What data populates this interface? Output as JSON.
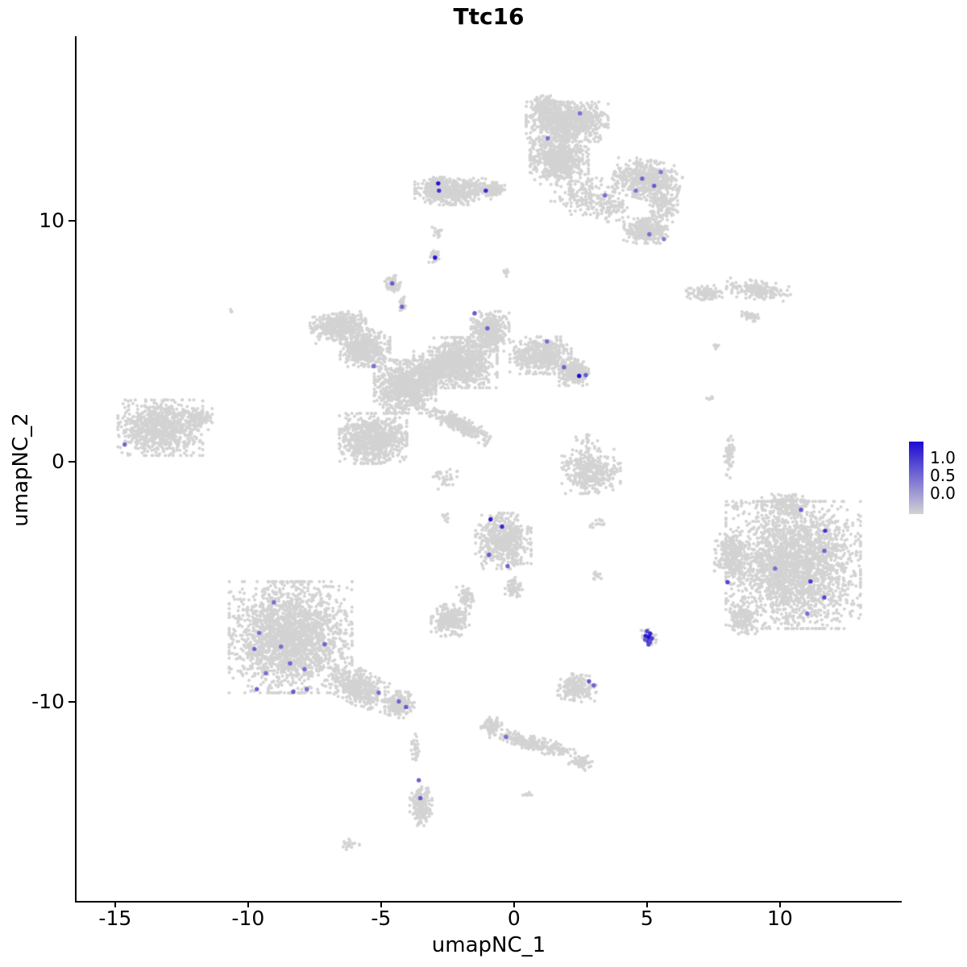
{
  "title": "Ttc16",
  "axes": {
    "xlabel": "umapNC_1",
    "ylabel": "umapNC_2"
  },
  "legend": {
    "ticks": [
      "1.0",
      "0.5",
      "0.0"
    ]
  },
  "chart_data": {
    "type": "scatter",
    "title": "Ttc16",
    "xlabel": "umapNC_1",
    "ylabel": "umapNC_2",
    "xlim": [
      -16.45,
      14.55
    ],
    "ylim": [
      -18.25,
      17.65
    ],
    "xticks": [
      -15,
      -10,
      -5,
      0,
      5,
      10
    ],
    "xtick_labels": [
      "-15",
      "-10",
      "-5",
      "0",
      "5",
      "10"
    ],
    "yticks": [
      -10,
      0,
      10
    ],
    "ytick_labels": [
      "-10",
      "0",
      "10"
    ],
    "grid": false,
    "legend_position": "right",
    "legend_ticks": [
      "1.0",
      "0.5",
      "0.0"
    ],
    "legend_values": [
      1.0,
      0.5,
      0.0
    ],
    "point_color_low": "#d3d3d3",
    "point_color_high": "#1c0ad2",
    "background_clusters": [
      [
        2.0,
        14.1,
        1.4,
        0.75,
        850,
        0
      ],
      [
        1.2,
        14.8,
        0.5,
        0.35,
        150,
        0
      ],
      [
        1.7,
        12.5,
        1.0,
        0.9,
        650,
        0
      ],
      [
        2.6,
        11.0,
        1.1,
        0.7,
        160,
        0
      ],
      [
        3.6,
        10.5,
        0.8,
        0.5,
        90,
        0
      ],
      [
        5.0,
        11.7,
        1.15,
        0.75,
        600,
        -15
      ],
      [
        4.95,
        9.6,
        0.75,
        0.5,
        320,
        0
      ],
      [
        5.6,
        10.6,
        0.5,
        0.6,
        120,
        0
      ],
      [
        -2.3,
        11.2,
        1.3,
        0.5,
        450,
        0
      ],
      [
        -2.9,
        11.3,
        0.35,
        0.45,
        150,
        0
      ],
      [
        -0.9,
        11.3,
        0.5,
        0.25,
        100,
        0
      ],
      [
        -2.8,
        9.5,
        0.25,
        0.3,
        16,
        0
      ],
      [
        -3.0,
        8.5,
        0.18,
        0.22,
        30,
        0
      ],
      [
        -4.55,
        7.35,
        0.28,
        0.33,
        70,
        0
      ],
      [
        -4.2,
        6.6,
        0.15,
        0.3,
        25,
        0
      ],
      [
        -6.6,
        5.6,
        0.95,
        0.5,
        380,
        10
      ],
      [
        -5.6,
        4.7,
        0.85,
        0.7,
        450,
        0
      ],
      [
        -4.1,
        3.1,
        1.05,
        1.0,
        850,
        0
      ],
      [
        -5.3,
        0.95,
        1.15,
        0.95,
        800,
        0
      ],
      [
        -3.0,
        3.8,
        0.7,
        0.7,
        300,
        0
      ],
      [
        -1.9,
        4.1,
        1.15,
        0.95,
        800,
        0
      ],
      [
        -0.9,
        5.4,
        0.65,
        0.75,
        380,
        0
      ],
      [
        1.0,
        4.4,
        1.05,
        0.7,
        500,
        0
      ],
      [
        2.25,
        3.7,
        0.5,
        0.5,
        250,
        0
      ],
      [
        -2.0,
        1.5,
        1.1,
        0.3,
        280,
        -28
      ],
      [
        -2.6,
        -0.6,
        0.5,
        0.5,
        40,
        0
      ],
      [
        -13.3,
        1.4,
        1.45,
        1.05,
        850,
        0
      ],
      [
        -11.9,
        1.75,
        0.5,
        0.4,
        130,
        0
      ],
      [
        7.2,
        7.0,
        0.65,
        0.25,
        110,
        5
      ],
      [
        9.2,
        7.1,
        1.1,
        0.35,
        170,
        -8
      ],
      [
        8.9,
        6.0,
        0.3,
        0.2,
        35,
        0
      ],
      [
        7.6,
        4.8,
        0.12,
        0.12,
        10,
        0
      ],
      [
        -0.4,
        -3.3,
        0.95,
        1.05,
        550,
        0
      ],
      [
        0.0,
        -5.2,
        0.3,
        0.4,
        60,
        0
      ],
      [
        2.9,
        -0.4,
        1.0,
        0.85,
        380,
        0
      ],
      [
        10.5,
        -4.3,
        2.3,
        2.4,
        2400,
        0
      ],
      [
        8.2,
        -3.9,
        0.6,
        0.8,
        250,
        0
      ],
      [
        8.6,
        -6.5,
        0.5,
        0.6,
        150,
        0
      ],
      [
        10.2,
        -1.8,
        0.8,
        0.4,
        150,
        0
      ],
      [
        -8.4,
        -7.3,
        2.1,
        2.1,
        2100,
        0
      ],
      [
        -5.8,
        -9.4,
        1.1,
        0.65,
        380,
        -30
      ],
      [
        -4.3,
        -10.1,
        0.5,
        0.5,
        220,
        0
      ],
      [
        -2.4,
        -6.6,
        0.65,
        0.6,
        240,
        0
      ],
      [
        -1.8,
        -5.6,
        0.3,
        0.45,
        60,
        20
      ],
      [
        2.4,
        -9.4,
        0.65,
        0.5,
        200,
        -10
      ],
      [
        5.05,
        -7.3,
        0.28,
        0.3,
        50,
        0
      ],
      [
        0.7,
        -11.7,
        1.5,
        0.28,
        260,
        -17
      ],
      [
        -0.85,
        -10.95,
        0.35,
        0.3,
        70,
        0
      ],
      [
        2.5,
        -12.5,
        0.4,
        0.3,
        60,
        0
      ],
      [
        -3.5,
        -14.3,
        0.38,
        0.75,
        170,
        0
      ],
      [
        -3.7,
        -11.9,
        0.15,
        0.65,
        30,
        0
      ],
      [
        -6.2,
        -15.9,
        0.35,
        0.2,
        22,
        0
      ],
      [
        0.5,
        -13.8,
        0.15,
        0.12,
        10,
        0
      ],
      [
        8.1,
        0.2,
        0.18,
        0.85,
        55,
        0
      ],
      [
        8.4,
        -1.8,
        0.2,
        0.2,
        12,
        0
      ],
      [
        -10.6,
        6.2,
        0.1,
        0.1,
        4,
        0
      ],
      [
        3.2,
        -2.6,
        0.3,
        0.3,
        14,
        0
      ],
      [
        3.1,
        -4.7,
        0.25,
        0.2,
        12,
        0
      ],
      [
        -2.6,
        -2.3,
        0.2,
        0.2,
        10,
        0
      ],
      [
        7.4,
        2.6,
        0.15,
        0.15,
        6,
        0
      ],
      [
        2.7,
        0.9,
        0.4,
        0.3,
        20,
        0
      ],
      [
        -0.3,
        7.9,
        0.15,
        0.2,
        8,
        0
      ]
    ],
    "expression_points": [
      [
        2.48,
        14.45,
        0.5
      ],
      [
        1.27,
        13.41,
        0.5
      ],
      [
        4.82,
        11.74,
        0.55
      ],
      [
        5.27,
        11.44,
        0.6
      ],
      [
        4.58,
        11.24,
        0.5
      ],
      [
        5.52,
        12.01,
        0.45
      ],
      [
        3.42,
        11.04,
        0.5
      ],
      [
        5.09,
        9.43,
        0.5
      ],
      [
        5.64,
        9.23,
        0.45
      ],
      [
        -2.85,
        11.54,
        0.95
      ],
      [
        -2.82,
        11.24,
        0.8
      ],
      [
        -1.06,
        11.24,
        0.85
      ],
      [
        -2.97,
        8.46,
        0.95
      ],
      [
        -4.58,
        7.39,
        0.6
      ],
      [
        -4.21,
        6.42,
        0.55
      ],
      [
        -1.48,
        6.15,
        0.6
      ],
      [
        -1.0,
        5.52,
        0.55
      ],
      [
        1.24,
        4.98,
        0.5
      ],
      [
        1.88,
        3.91,
        0.55
      ],
      [
        2.45,
        3.55,
        1.0
      ],
      [
        2.7,
        3.58,
        0.6
      ],
      [
        -5.27,
        3.95,
        0.5
      ],
      [
        -14.64,
        0.7,
        0.55
      ],
      [
        -0.88,
        -2.41,
        0.9
      ],
      [
        -0.45,
        -2.71,
        0.85
      ],
      [
        -0.94,
        -3.88,
        0.6
      ],
      [
        -0.24,
        -4.35,
        0.55
      ],
      [
        10.79,
        -2.01,
        0.6
      ],
      [
        11.7,
        -2.88,
        0.8
      ],
      [
        11.67,
        -3.71,
        0.55
      ],
      [
        9.82,
        -4.45,
        0.5
      ],
      [
        8.03,
        -5.02,
        0.7
      ],
      [
        11.15,
        -4.98,
        0.75
      ],
      [
        11.67,
        -5.65,
        0.7
      ],
      [
        11.03,
        -6.32,
        0.5
      ],
      [
        5.0,
        -7.05,
        0.7
      ],
      [
        5.12,
        -7.15,
        0.85
      ],
      [
        4.95,
        -7.25,
        0.9
      ],
      [
        5.08,
        -7.3,
        1.0
      ],
      [
        5.18,
        -7.35,
        0.75
      ],
      [
        5.02,
        -7.45,
        0.8
      ],
      [
        5.12,
        -7.5,
        0.65
      ],
      [
        4.93,
        -7.4,
        0.6
      ],
      [
        5.06,
        -7.6,
        0.7
      ],
      [
        2.82,
        -9.13,
        0.6
      ],
      [
        3.0,
        -9.3,
        0.55
      ],
      [
        -9.03,
        -5.85,
        0.5
      ],
      [
        -9.58,
        -7.12,
        0.5
      ],
      [
        -9.76,
        -7.79,
        0.55
      ],
      [
        -8.76,
        -7.69,
        0.5
      ],
      [
        -8.42,
        -8.39,
        0.55
      ],
      [
        -7.88,
        -8.63,
        0.5
      ],
      [
        -9.33,
        -8.8,
        0.5
      ],
      [
        -9.67,
        -9.46,
        0.55
      ],
      [
        -8.3,
        -9.57,
        0.6
      ],
      [
        -7.79,
        -9.46,
        0.5
      ],
      [
        -7.12,
        -7.59,
        0.55
      ],
      [
        -5.09,
        -9.6,
        0.5
      ],
      [
        -4.33,
        -9.97,
        0.55
      ],
      [
        -4.06,
        -10.2,
        0.6
      ],
      [
        -3.58,
        -13.24,
        0.55
      ],
      [
        -3.52,
        -13.98,
        0.6
      ],
      [
        -0.3,
        -11.44,
        0.5
      ]
    ]
  }
}
